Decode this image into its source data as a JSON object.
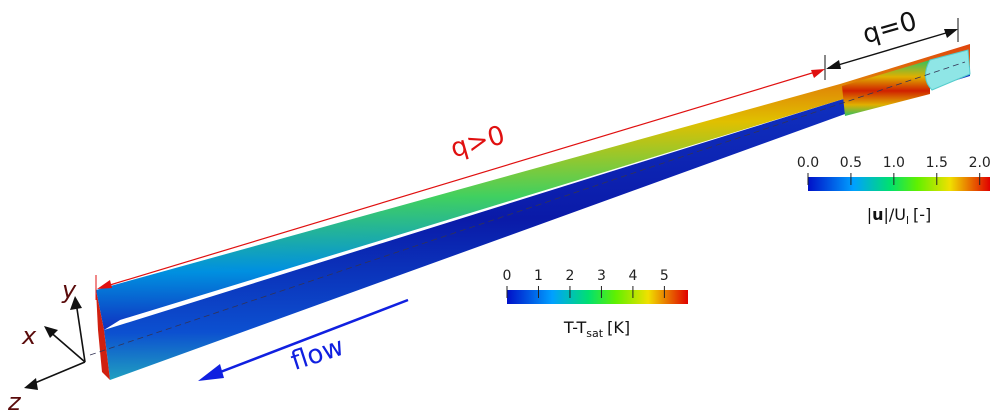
{
  "annotations": {
    "heated": "q>0",
    "adiabatic": "q=0",
    "flow": "flow"
  },
  "axes": {
    "x": "x",
    "y": "y",
    "z": "z"
  },
  "colorbars": [
    {
      "range": [
        0,
        5.75
      ],
      "ticks": [
        0,
        1,
        2,
        3,
        4,
        5
      ],
      "label": {
        "main": "T-T",
        "sub": "sat",
        "unit": "[K]"
      }
    },
    {
      "range": [
        0,
        2.12
      ],
      "ticks": [
        {
          "value": 0,
          "label": "0.0"
        },
        {
          "value": 0.5,
          "label": "0.5"
        },
        {
          "value": 1,
          "label": "1.0"
        },
        {
          "value": 1.5,
          "label": "1.5"
        },
        {
          "value": 2,
          "label": "2.0"
        }
      ],
      "label": {
        "open": "|",
        "bold": "u",
        "mid": "|/U",
        "sub": "l",
        "unit": "[-]"
      }
    }
  ]
}
